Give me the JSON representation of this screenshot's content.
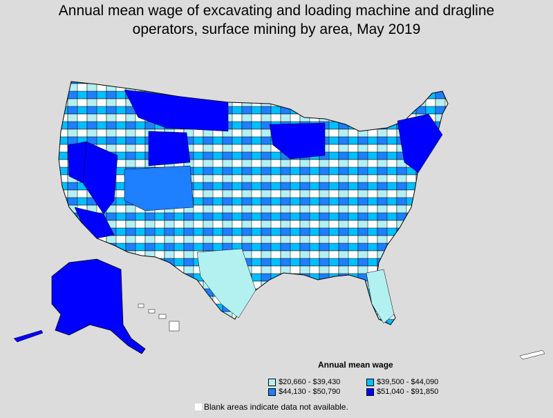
{
  "title_line1": "Annual mean wage of excavating and loading machine and dragline",
  "title_line2": "operators, surface mining by area, May 2019",
  "legend": {
    "title": "Annual mean wage",
    "items": [
      {
        "label": "$20,660 - $39,430",
        "color": "#b3f0f0"
      },
      {
        "label": "$39,500 - $44,090",
        "color": "#00bfff"
      },
      {
        "label": "$44,130 - $50,790",
        "color": "#1e7fff"
      },
      {
        "label": "$51,040 - $91,850",
        "color": "#0000ff"
      }
    ]
  },
  "note": "Blank areas indicate data not available.",
  "colors": {
    "background": "#dcdcdc",
    "no_data": "#ffffff",
    "border": "#000000"
  }
}
